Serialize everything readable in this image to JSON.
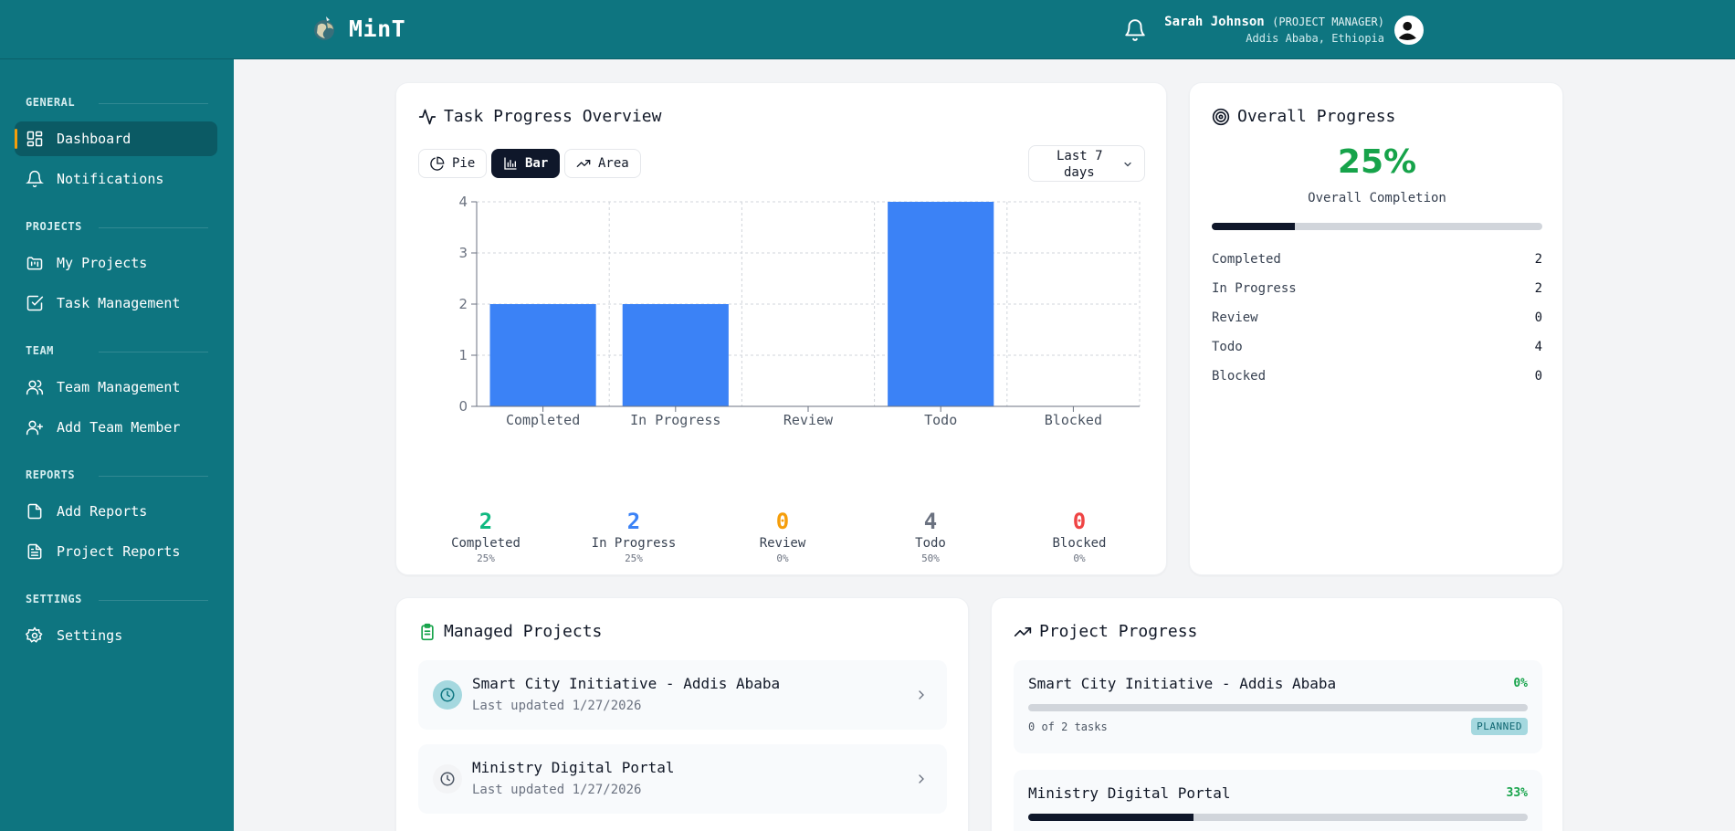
{
  "header": {
    "app_name": "MinT",
    "user_name": "Sarah Johnson",
    "user_role": "(PROJECT MANAGER)",
    "user_location": "Addis Ababa, Ethiopia"
  },
  "sidebar": {
    "sections": [
      {
        "label": "GENERAL",
        "items": [
          {
            "label": "Dashboard",
            "icon": "dashboard-icon",
            "active": true
          },
          {
            "label": "Notifications",
            "icon": "bell-icon"
          }
        ]
      },
      {
        "label": "PROJECTS",
        "items": [
          {
            "label": "My Projects",
            "icon": "kanban-icon"
          },
          {
            "label": "Task Management",
            "icon": "check-square-icon"
          }
        ]
      },
      {
        "label": "TEAM",
        "items": [
          {
            "label": "Team Management",
            "icon": "users-icon"
          },
          {
            "label": "Add Team Member",
            "icon": "user-plus-icon"
          }
        ]
      },
      {
        "label": "REPORTS",
        "items": [
          {
            "label": "Add Reports",
            "icon": "file-icon"
          },
          {
            "label": "Project Reports",
            "icon": "file-text-icon"
          }
        ]
      },
      {
        "label": "SETTINGS",
        "items": [
          {
            "label": "Settings",
            "icon": "gear-icon"
          }
        ]
      }
    ]
  },
  "task_overview": {
    "title": "Task Progress Overview",
    "toggles": [
      {
        "label": "Pie"
      },
      {
        "label": "Bar",
        "active": true
      },
      {
        "label": "Area"
      }
    ],
    "range_line1": "Last 7",
    "range_line2": "days",
    "stats": [
      {
        "value": "2",
        "label": "Completed",
        "pct": "25%",
        "color": "#10b981"
      },
      {
        "value": "2",
        "label": "In Progress",
        "pct": "25%",
        "color": "#3b82f6"
      },
      {
        "value": "0",
        "label": "Review",
        "pct": "0%",
        "color": "#f59e0b"
      },
      {
        "value": "4",
        "label": "Todo",
        "pct": "50%",
        "color": "#6b7280"
      },
      {
        "value": "0",
        "label": "Blocked",
        "pct": "0%",
        "color": "#ef4444"
      }
    ]
  },
  "chart_data": {
    "type": "bar",
    "categories": [
      "Completed",
      "In Progress",
      "Review",
      "Todo",
      "Blocked"
    ],
    "values": [
      2,
      2,
      0,
      4,
      0
    ],
    "yticks": [
      "0",
      "1",
      "2",
      "3",
      "4"
    ],
    "ylim": [
      0,
      4
    ],
    "grid": true,
    "bar_color": "#3b82f6"
  },
  "overall": {
    "title": "Overall Progress",
    "percent_label": "25%",
    "percent_value": 25,
    "subtitle": "Overall Completion",
    "rows": [
      {
        "label": "Completed",
        "value": "2"
      },
      {
        "label": "In Progress",
        "value": "2"
      },
      {
        "label": "Review",
        "value": "0"
      },
      {
        "label": "Todo",
        "value": "4"
      },
      {
        "label": "Blocked",
        "value": "0"
      }
    ]
  },
  "managed": {
    "title": "Managed Projects",
    "items": [
      {
        "name": "Smart City Initiative - Addis Ababa",
        "updated": "Last updated 1/27/2026"
      },
      {
        "name": "Ministry Digital Portal",
        "updated": "Last updated 1/27/2026"
      }
    ]
  },
  "project_progress": {
    "title": "Project Progress",
    "items": [
      {
        "name": "Smart City Initiative - Addis Ababa",
        "pct_label": "0%",
        "pct": 0,
        "tasks": "0 of 2 tasks",
        "badge": "PLANNED"
      },
      {
        "name": "Ministry Digital Portal",
        "pct_label": "33%",
        "pct": 33
      }
    ]
  }
}
